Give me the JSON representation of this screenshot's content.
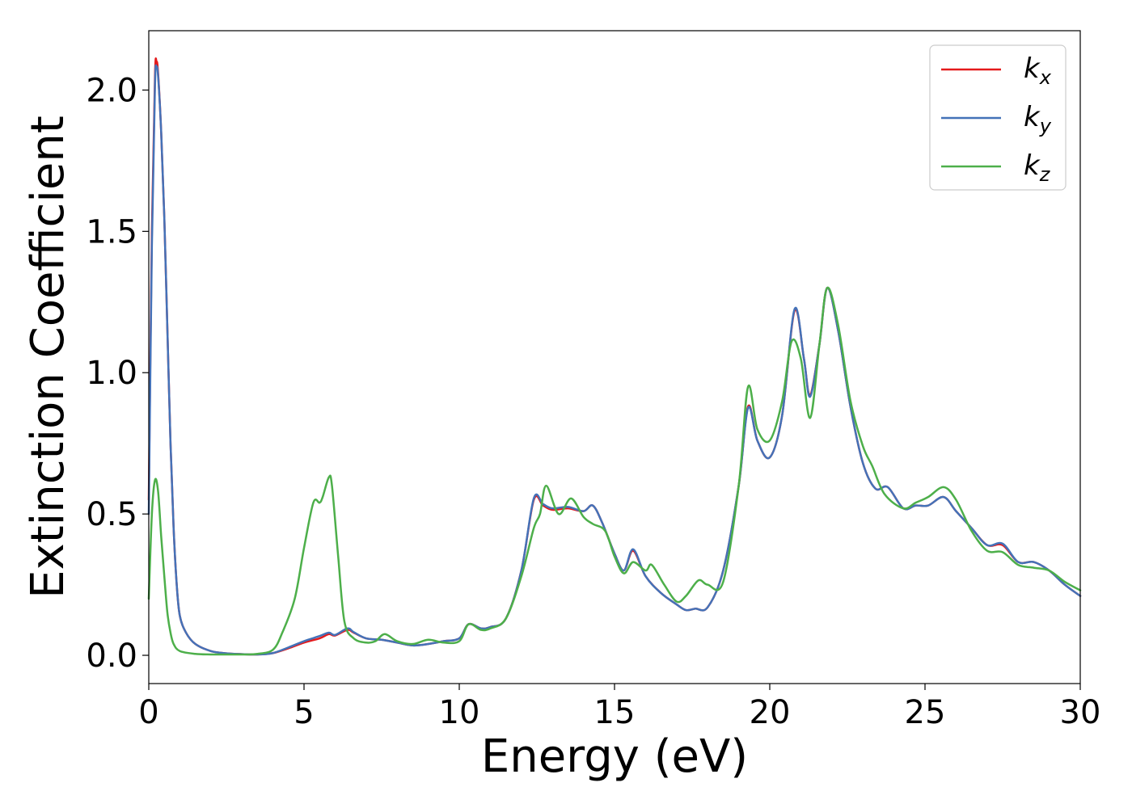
{
  "chart_data": {
    "type": "line",
    "xlabel": "Energy (eV)",
    "ylabel": "Extinction Coefficient",
    "xlim": [
      0,
      30
    ],
    "ylim": [
      -0.1,
      2.21
    ],
    "xticks": [
      0,
      5,
      10,
      15,
      20,
      25,
      30
    ],
    "xtick_labels": [
      "0",
      "5",
      "10",
      "15",
      "20",
      "25",
      "30"
    ],
    "yticks": [
      0.0,
      0.5,
      1.0,
      1.5,
      2.0
    ],
    "ytick_labels": [
      "0.0",
      "0.5",
      "1.0",
      "1.5",
      "2.0"
    ],
    "grid": false,
    "legend_position": "top-right",
    "series": [
      {
        "name": "k_x",
        "base": "k",
        "sub": "x",
        "color": "#e41a1c",
        "points": [
          [
            0,
            0.55
          ],
          [
            0.1,
            1.5
          ],
          [
            0.2,
            2.05
          ],
          [
            0.25,
            2.1
          ],
          [
            0.3,
            2.06
          ],
          [
            0.4,
            1.85
          ],
          [
            0.5,
            1.55
          ],
          [
            0.6,
            1.15
          ],
          [
            0.7,
            0.75
          ],
          [
            0.8,
            0.45
          ],
          [
            0.9,
            0.25
          ],
          [
            1.0,
            0.14
          ],
          [
            1.2,
            0.08
          ],
          [
            1.5,
            0.04
          ],
          [
            2,
            0.015
          ],
          [
            2.5,
            0.007
          ],
          [
            3,
            0.004
          ],
          [
            3.5,
            0.003
          ],
          [
            4,
            0.008
          ],
          [
            4.5,
            0.025
          ],
          [
            5,
            0.045
          ],
          [
            5.5,
            0.06
          ],
          [
            5.8,
            0.075
          ],
          [
            6.0,
            0.07
          ],
          [
            6.4,
            0.09
          ],
          [
            6.6,
            0.08
          ],
          [
            7,
            0.06
          ],
          [
            7.5,
            0.055
          ],
          [
            8,
            0.045
          ],
          [
            8.5,
            0.035
          ],
          [
            9,
            0.04
          ],
          [
            9.5,
            0.05
          ],
          [
            10,
            0.06
          ],
          [
            10.3,
            0.11
          ],
          [
            10.7,
            0.095
          ],
          [
            11,
            0.1
          ],
          [
            11.5,
            0.13
          ],
          [
            12,
            0.3
          ],
          [
            12.4,
            0.55
          ],
          [
            12.7,
            0.53
          ],
          [
            13,
            0.515
          ],
          [
            13.5,
            0.52
          ],
          [
            14,
            0.51
          ],
          [
            14.3,
            0.53
          ],
          [
            14.6,
            0.47
          ],
          [
            15,
            0.36
          ],
          [
            15.3,
            0.3
          ],
          [
            15.6,
            0.37
          ],
          [
            16,
            0.28
          ],
          [
            16.5,
            0.22
          ],
          [
            17,
            0.18
          ],
          [
            17.3,
            0.16
          ],
          [
            17.6,
            0.165
          ],
          [
            18,
            0.17
          ],
          [
            18.5,
            0.3
          ],
          [
            19,
            0.6
          ],
          [
            19.3,
            0.88
          ],
          [
            19.6,
            0.76
          ],
          [
            20,
            0.7
          ],
          [
            20.4,
            0.85
          ],
          [
            20.8,
            1.22
          ],
          [
            21.1,
            1.05
          ],
          [
            21.3,
            0.92
          ],
          [
            21.6,
            1.1
          ],
          [
            21.85,
            1.3
          ],
          [
            22.2,
            1.15
          ],
          [
            22.6,
            0.88
          ],
          [
            23,
            0.68
          ],
          [
            23.4,
            0.59
          ],
          [
            23.8,
            0.595
          ],
          [
            24.3,
            0.52
          ],
          [
            24.7,
            0.53
          ],
          [
            25.1,
            0.53
          ],
          [
            25.6,
            0.56
          ],
          [
            26,
            0.51
          ],
          [
            26.5,
            0.45
          ],
          [
            27,
            0.39
          ],
          [
            27.5,
            0.39
          ],
          [
            28,
            0.33
          ],
          [
            28.5,
            0.33
          ],
          [
            29,
            0.3
          ],
          [
            29.5,
            0.25
          ],
          [
            30,
            0.21
          ]
        ]
      },
      {
        "name": "k_y",
        "base": "k",
        "sub": "y",
        "color": "#4472b8",
        "points": [
          [
            0,
            0.5
          ],
          [
            0.1,
            1.45
          ],
          [
            0.2,
            2.02
          ],
          [
            0.25,
            2.08
          ],
          [
            0.3,
            2.05
          ],
          [
            0.4,
            1.85
          ],
          [
            0.5,
            1.55
          ],
          [
            0.6,
            1.15
          ],
          [
            0.7,
            0.75
          ],
          [
            0.8,
            0.45
          ],
          [
            0.9,
            0.25
          ],
          [
            1.0,
            0.14
          ],
          [
            1.2,
            0.08
          ],
          [
            1.5,
            0.04
          ],
          [
            2,
            0.015
          ],
          [
            2.5,
            0.007
          ],
          [
            3,
            0.004
          ],
          [
            3.5,
            0.003
          ],
          [
            4,
            0.008
          ],
          [
            4.5,
            0.028
          ],
          [
            5,
            0.05
          ],
          [
            5.5,
            0.068
          ],
          [
            5.8,
            0.08
          ],
          [
            6.0,
            0.072
          ],
          [
            6.4,
            0.095
          ],
          [
            6.6,
            0.082
          ],
          [
            7,
            0.06
          ],
          [
            7.5,
            0.055
          ],
          [
            8,
            0.045
          ],
          [
            8.5,
            0.035
          ],
          [
            9,
            0.04
          ],
          [
            9.5,
            0.05
          ],
          [
            10,
            0.06
          ],
          [
            10.3,
            0.11
          ],
          [
            10.7,
            0.095
          ],
          [
            11,
            0.1
          ],
          [
            11.5,
            0.13
          ],
          [
            12,
            0.3
          ],
          [
            12.4,
            0.555
          ],
          [
            12.7,
            0.535
          ],
          [
            13,
            0.52
          ],
          [
            13.5,
            0.525
          ],
          [
            14,
            0.51
          ],
          [
            14.3,
            0.53
          ],
          [
            14.6,
            0.47
          ],
          [
            15,
            0.36
          ],
          [
            15.3,
            0.3
          ],
          [
            15.6,
            0.375
          ],
          [
            16,
            0.28
          ],
          [
            16.5,
            0.22
          ],
          [
            17,
            0.18
          ],
          [
            17.3,
            0.16
          ],
          [
            17.6,
            0.165
          ],
          [
            18,
            0.17
          ],
          [
            18.5,
            0.3
          ],
          [
            19,
            0.6
          ],
          [
            19.3,
            0.875
          ],
          [
            19.6,
            0.76
          ],
          [
            20,
            0.7
          ],
          [
            20.4,
            0.85
          ],
          [
            20.8,
            1.225
          ],
          [
            21.1,
            1.05
          ],
          [
            21.3,
            0.915
          ],
          [
            21.6,
            1.1
          ],
          [
            21.85,
            1.3
          ],
          [
            22.2,
            1.15
          ],
          [
            22.6,
            0.88
          ],
          [
            23,
            0.68
          ],
          [
            23.4,
            0.59
          ],
          [
            23.8,
            0.595
          ],
          [
            24.3,
            0.52
          ],
          [
            24.7,
            0.53
          ],
          [
            25.1,
            0.53
          ],
          [
            25.6,
            0.56
          ],
          [
            26,
            0.51
          ],
          [
            26.5,
            0.45
          ],
          [
            27,
            0.39
          ],
          [
            27.5,
            0.395
          ],
          [
            28,
            0.33
          ],
          [
            28.5,
            0.33
          ],
          [
            29,
            0.3
          ],
          [
            29.5,
            0.25
          ],
          [
            30,
            0.21
          ]
        ]
      },
      {
        "name": "k_z",
        "base": "k",
        "sub": "z",
        "color": "#4daf4a",
        "points": [
          [
            0,
            0.2
          ],
          [
            0.1,
            0.5
          ],
          [
            0.2,
            0.62
          ],
          [
            0.3,
            0.58
          ],
          [
            0.4,
            0.42
          ],
          [
            0.5,
            0.28
          ],
          [
            0.6,
            0.15
          ],
          [
            0.7,
            0.08
          ],
          [
            0.8,
            0.04
          ],
          [
            1.0,
            0.015
          ],
          [
            1.5,
            0.005
          ],
          [
            2,
            0.003
          ],
          [
            3,
            0.003
          ],
          [
            3.5,
            0.005
          ],
          [
            4,
            0.02
          ],
          [
            4.3,
            0.08
          ],
          [
            4.7,
            0.2
          ],
          [
            5,
            0.38
          ],
          [
            5.3,
            0.54
          ],
          [
            5.5,
            0.54
          ],
          [
            5.6,
            0.56
          ],
          [
            5.8,
            0.63
          ],
          [
            5.9,
            0.6
          ],
          [
            6.1,
            0.35
          ],
          [
            6.3,
            0.12
          ],
          [
            6.6,
            0.06
          ],
          [
            7,
            0.045
          ],
          [
            7.3,
            0.05
          ],
          [
            7.6,
            0.075
          ],
          [
            8,
            0.05
          ],
          [
            8.5,
            0.04
          ],
          [
            9,
            0.055
          ],
          [
            9.5,
            0.045
          ],
          [
            10,
            0.05
          ],
          [
            10.3,
            0.11
          ],
          [
            10.7,
            0.09
          ],
          [
            11,
            0.095
          ],
          [
            11.5,
            0.13
          ],
          [
            12,
            0.28
          ],
          [
            12.4,
            0.45
          ],
          [
            12.6,
            0.5
          ],
          [
            12.8,
            0.6
          ],
          [
            13.2,
            0.5
          ],
          [
            13.6,
            0.555
          ],
          [
            14,
            0.49
          ],
          [
            14.3,
            0.465
          ],
          [
            14.7,
            0.44
          ],
          [
            15,
            0.35
          ],
          [
            15.3,
            0.29
          ],
          [
            15.6,
            0.33
          ],
          [
            16,
            0.3
          ],
          [
            16.2,
            0.32
          ],
          [
            16.6,
            0.25
          ],
          [
            17,
            0.19
          ],
          [
            17.3,
            0.21
          ],
          [
            17.7,
            0.265
          ],
          [
            18,
            0.25
          ],
          [
            18.5,
            0.26
          ],
          [
            19,
            0.6
          ],
          [
            19.3,
            0.95
          ],
          [
            19.6,
            0.8
          ],
          [
            20,
            0.76
          ],
          [
            20.4,
            0.9
          ],
          [
            20.7,
            1.11
          ],
          [
            21,
            1.05
          ],
          [
            21.3,
            0.84
          ],
          [
            21.6,
            1.1
          ],
          [
            21.85,
            1.3
          ],
          [
            22.2,
            1.17
          ],
          [
            22.6,
            0.9
          ],
          [
            23,
            0.74
          ],
          [
            23.3,
            0.67
          ],
          [
            23.7,
            0.57
          ],
          [
            24.3,
            0.52
          ],
          [
            24.7,
            0.54
          ],
          [
            25.1,
            0.56
          ],
          [
            25.6,
            0.595
          ],
          [
            26,
            0.55
          ],
          [
            26.5,
            0.44
          ],
          [
            27,
            0.37
          ],
          [
            27.5,
            0.365
          ],
          [
            28,
            0.32
          ],
          [
            28.5,
            0.31
          ],
          [
            29,
            0.3
          ],
          [
            29.5,
            0.26
          ],
          [
            30,
            0.23
          ]
        ]
      }
    ]
  }
}
